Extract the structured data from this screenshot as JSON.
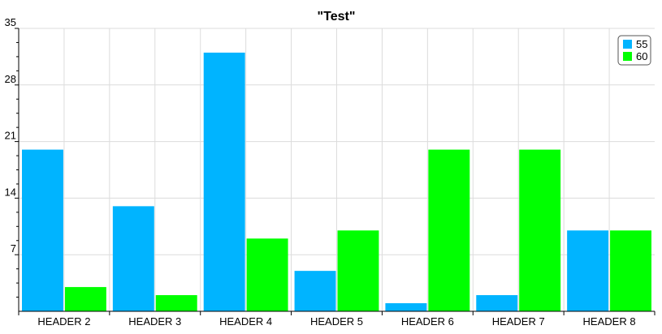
{
  "chart_data": {
    "type": "bar",
    "title": "\"Test\"",
    "xlabel": "",
    "ylabel": "",
    "categories": [
      "HEADER 2",
      "HEADER 3",
      "HEADER 4",
      "HEADER 5",
      "HEADER 6",
      "HEADER 7",
      "HEADER 8"
    ],
    "series": [
      {
        "name": "55",
        "color": "#00b4ff",
        "values": [
          20,
          13,
          32,
          5,
          1,
          2,
          10
        ]
      },
      {
        "name": "60",
        "color": "#00ff00",
        "values": [
          3,
          2,
          9,
          10,
          20,
          20,
          10
        ]
      }
    ],
    "ylim": [
      0,
      35
    ],
    "yticks": [
      "7",
      "14",
      "21",
      "28",
      "35"
    ],
    "grid": true,
    "legend_position": "top-right"
  }
}
